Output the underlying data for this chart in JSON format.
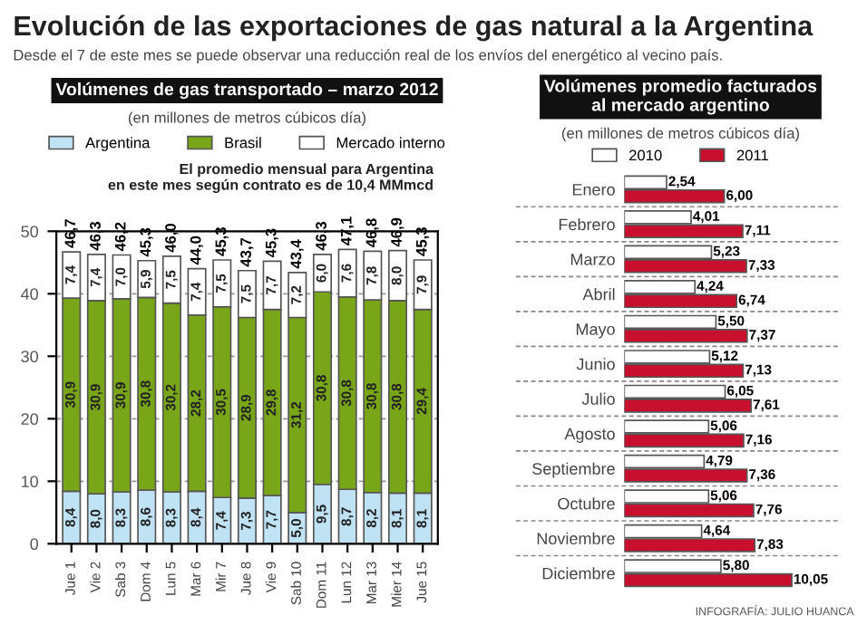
{
  "chart_data": [
    {
      "type": "bar",
      "stacked": true,
      "title": "Volúmenes de gas transportado – marzo 2012",
      "subtitle": "(en millones de metros cúbicos día)",
      "annotations": [
        "Evolución de las exportaciones de gas natural a la Argentina",
        "Desde el 7 de este mes se puede observar una reducción real de los envíos del energético al vecino país.",
        "El promedio mensual para Argentina\nen este mes según contrato es de 10,4 MMmcd"
      ],
      "categories": [
        "Jue 1",
        "Vie 2",
        "Sab 3",
        "Dom 4",
        "Lun 5",
        "Mar 6",
        "Mir 7",
        "Jue 8",
        "Vie 9",
        "Sab 10",
        "Dom 11",
        "Lun 12",
        "Mar 13",
        "Mier 14",
        "Jue 15"
      ],
      "series": [
        {
          "name": "Argentina",
          "color": "#bfe2f4",
          "values": [
            8.4,
            8.0,
            8.3,
            8.6,
            8.3,
            8.4,
            7.4,
            7.3,
            7.7,
            5.0,
            9.5,
            8.7,
            8.2,
            8.1,
            8.1
          ],
          "value_labels": [
            "8,4",
            "8,0",
            "8,3",
            "8,6",
            "8,3",
            "8,4",
            "7,4",
            "7,3",
            "7,7",
            "5,0",
            "9,5",
            "8,7",
            "8,2",
            "8,1",
            "8,1"
          ]
        },
        {
          "name": "Brasil",
          "color": "#79a619",
          "values": [
            30.9,
            30.9,
            30.9,
            30.8,
            30.2,
            28.2,
            30.5,
            28.9,
            29.8,
            31.2,
            30.8,
            30.8,
            30.8,
            30.8,
            29.4
          ],
          "value_labels": [
            "30,9",
            "30,9",
            "30,9",
            "30,8",
            "30,2",
            "28,2",
            "30,5",
            "28,9",
            "29,8",
            "31,2",
            "30,8",
            "30,8",
            "30,8",
            "30,8",
            "29,4"
          ]
        },
        {
          "name": "Mercado interno",
          "color": "#ffffff",
          "values": [
            7.4,
            7.4,
            7.0,
            5.9,
            7.5,
            7.4,
            7.5,
            7.5,
            7.7,
            7.2,
            6.0,
            7.6,
            7.8,
            8.0,
            7.9
          ],
          "value_labels": [
            "7,4",
            "7,4",
            "7,0",
            "5,9",
            "7,5",
            "7,4",
            "7,5",
            "7,5",
            "7,7",
            "7,2",
            "6,0",
            "7,6",
            "7,8",
            "8,0",
            "7,9"
          ]
        }
      ],
      "totals": [
        "46,7",
        "46,3",
        "46,2",
        "45,3",
        "46,0",
        "44,0",
        "45,3",
        "43,7",
        "45,3",
        "43,4",
        "46,3",
        "47,1",
        "46,8",
        "46,9",
        "45,3"
      ],
      "ylim": [
        0,
        50
      ],
      "yticks": [
        0,
        10,
        20,
        30,
        40,
        50
      ],
      "grid": "y",
      "legend": "top"
    },
    {
      "type": "bar",
      "orientation": "horizontal",
      "title": "Volúmenes promedio facturados\nal mercado argentino",
      "subtitle": "(en millones de metros cúbicos día)",
      "annotations": [
        "INFOGRAFÍA: JULIO HUANCA"
      ],
      "categories": [
        "Enero",
        "Febrero",
        "Marzo",
        "Abril",
        "Mayo",
        "Junio",
        "Julio",
        "Agosto",
        "Septiembre",
        "Octubre",
        "Noviembre",
        "Diciembre"
      ],
      "series": [
        {
          "name": "2010",
          "color": "#ffffff",
          "values": [
            2.54,
            4.01,
            5.23,
            4.24,
            5.5,
            5.12,
            6.05,
            5.06,
            4.79,
            5.06,
            4.64,
            5.8
          ],
          "value_labels": [
            "2,54",
            "4,01",
            "5,23",
            "4,24",
            "5,50",
            "5,12",
            "6,05",
            "5,06",
            "4,79",
            "5,06",
            "4,64",
            "5,80"
          ]
        },
        {
          "name": "2011",
          "color": "#c8102e",
          "values": [
            6.0,
            7.11,
            7.33,
            6.74,
            7.37,
            7.13,
            7.61,
            7.16,
            7.36,
            7.76,
            7.83,
            10.05
          ],
          "value_labels": [
            "6,00",
            "7,11",
            "7,33",
            "6,74",
            "7,37",
            "7,13",
            "7,61",
            "7,16",
            "7,36",
            "7,76",
            "7,83",
            "10,05"
          ]
        }
      ],
      "xlim": [
        0,
        13
      ],
      "tick_labels": "y",
      "legend": "top"
    }
  ]
}
